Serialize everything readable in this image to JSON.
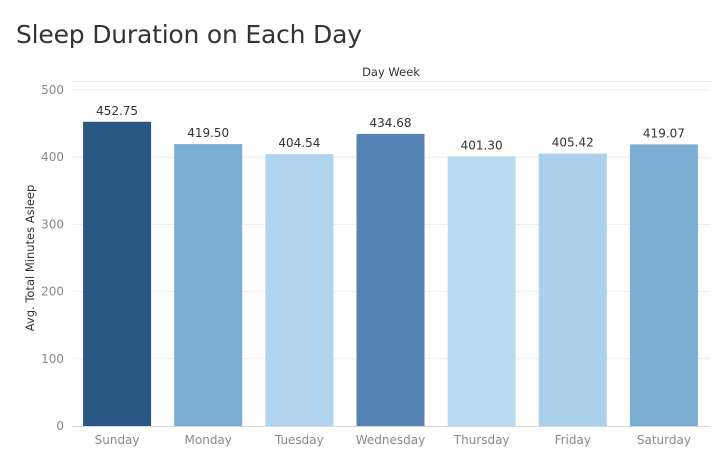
{
  "chart_data": {
    "type": "bar",
    "title": "Sleep Duration on Each Day",
    "xlabel": "Day Week",
    "ylabel": "Avg. Total Minutes Asleep",
    "categories": [
      "Sunday",
      "Monday",
      "Tuesday",
      "Wednesday",
      "Thursday",
      "Friday",
      "Saturday"
    ],
    "values": [
      452.75,
      419.5,
      404.54,
      434.68,
      401.3,
      405.42,
      419.07
    ],
    "value_labels": [
      "452.75",
      "419.50",
      "404.54",
      "434.68",
      "401.30",
      "405.42",
      "419.07"
    ],
    "colors": [
      "#2a5783",
      "#7aaed4",
      "#b0d3ee",
      "#5283b3",
      "#b9dbf1",
      "#acd1ec",
      "#7aaed4"
    ],
    "yticks": [
      0,
      100,
      200,
      300,
      400,
      500
    ],
    "ylim": [
      0,
      500
    ],
    "grid": true,
    "legend": "none"
  }
}
